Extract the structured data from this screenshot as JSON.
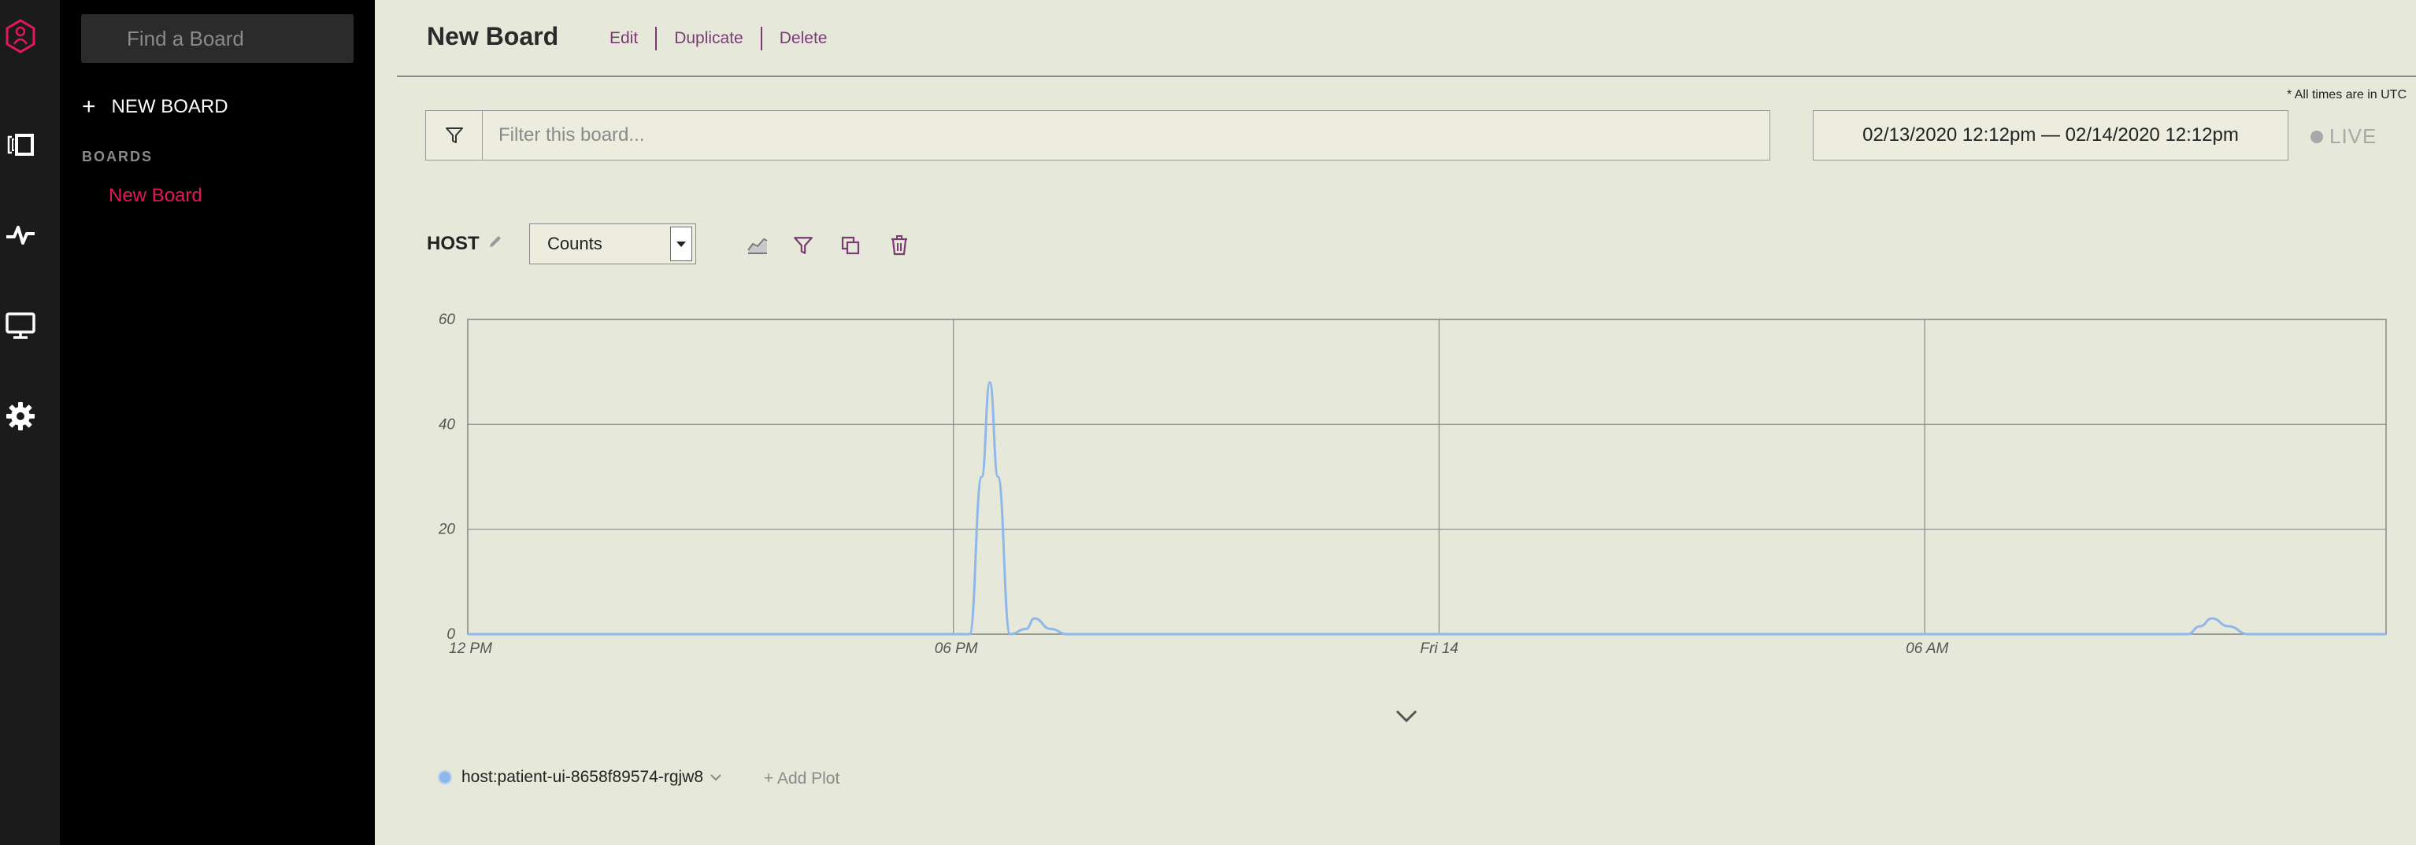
{
  "rail": {
    "icons": [
      "honeycomb-logo-icon",
      "boards-icon",
      "activity-icon",
      "monitor-icon",
      "gear-icon"
    ]
  },
  "sidebar": {
    "search_placeholder": "Find a Board",
    "new_board_label": "NEW BOARD",
    "boards_heading": "BOARDS",
    "boards": [
      "New Board"
    ]
  },
  "header": {
    "title": "New Board",
    "actions": [
      "Edit",
      "Duplicate",
      "Delete"
    ]
  },
  "timezone_note": "* All times are in UTC",
  "filter": {
    "placeholder": "Filter this board...",
    "value": ""
  },
  "date_range": "02/13/2020 12:12pm — 02/14/2020 12:12pm",
  "live_label": "LIVE",
  "plot": {
    "title": "HOST",
    "calculation": "Counts",
    "toolbar_icons": [
      "chart-type-icon",
      "filter-icon",
      "duplicate-icon",
      "trash-icon"
    ]
  },
  "chart_data": {
    "type": "line",
    "title": "",
    "xlabel": "",
    "ylabel": "",
    "x_ticks": [
      "12 PM",
      "06 PM",
      "Fri 14",
      "06 AM"
    ],
    "y_ticks": [
      0,
      20,
      40,
      60
    ],
    "ylim": [
      0,
      60
    ],
    "xlim_hours": [
      0,
      23.7
    ],
    "grid": true,
    "series": [
      {
        "name": "host:patient-ui-8658f89574-rgjw8",
        "color": "#8fb8ea",
        "points": [
          [
            0,
            0
          ],
          [
            6.0,
            0
          ],
          [
            6.2,
            0
          ],
          [
            6.35,
            30
          ],
          [
            6.45,
            48
          ],
          [
            6.55,
            30
          ],
          [
            6.7,
            0
          ],
          [
            6.9,
            1
          ],
          [
            7.0,
            3
          ],
          [
            7.2,
            1
          ],
          [
            7.4,
            0
          ],
          [
            21.25,
            0
          ],
          [
            21.4,
            1.5
          ],
          [
            21.55,
            3
          ],
          [
            21.75,
            1.5
          ],
          [
            22.0,
            0
          ],
          [
            23.7,
            0
          ]
        ]
      }
    ]
  },
  "legend": {
    "series_label": "host:patient-ui-8658f89574-rgjw8",
    "add_plot_label": "+ Add Plot"
  },
  "colors": {
    "accent": "#e2185b",
    "action": "#7a3b75",
    "series": "#8fb8ea",
    "background": "#e6e8d9"
  }
}
